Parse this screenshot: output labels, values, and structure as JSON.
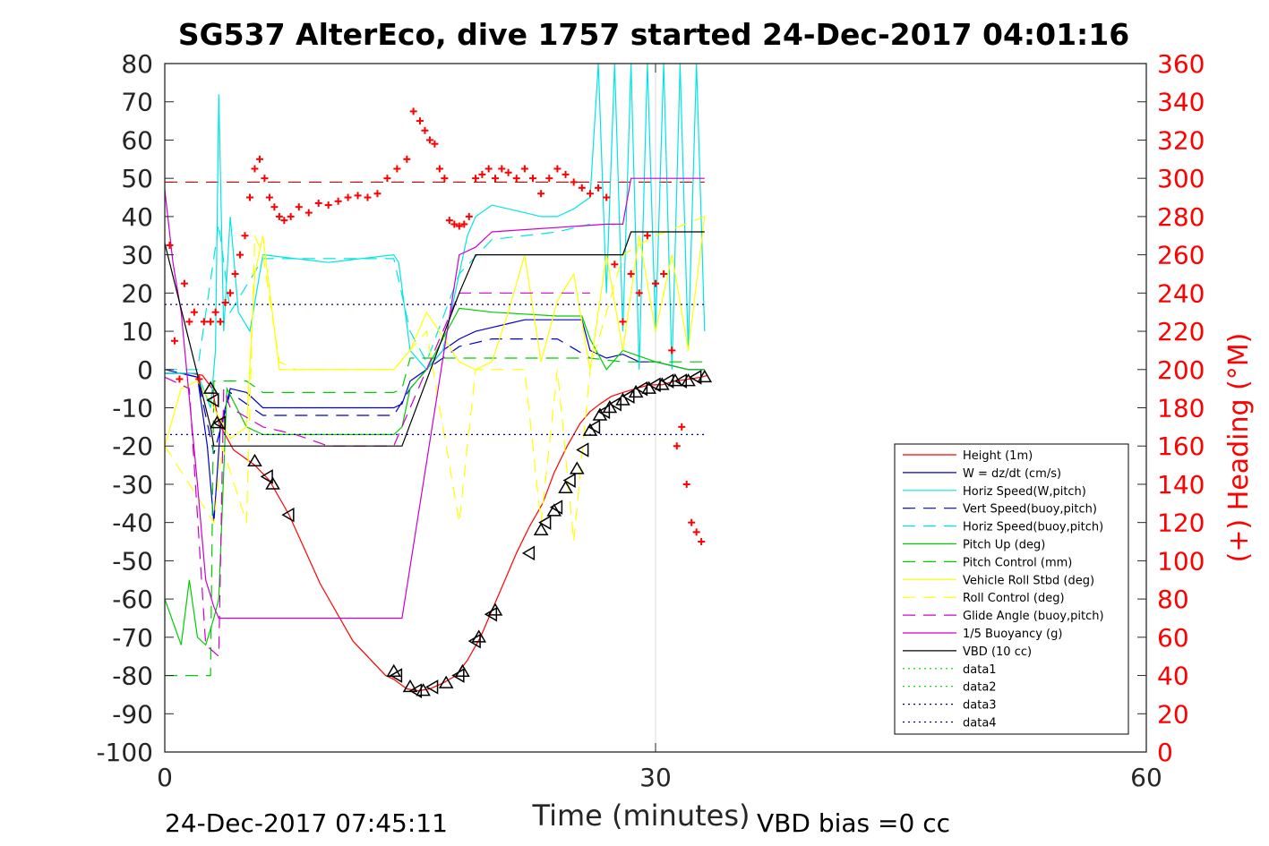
{
  "chart_data": {
    "type": "line",
    "title": "SG537 AlterEco, dive 1757 started 24-Dec-2017 04:01:16",
    "xlabel": "Time (minutes)",
    "ylabel": "",
    "y2label": "(+) Heading (°M)",
    "xlim": [
      0,
      60
    ],
    "ylim": [
      -100,
      80
    ],
    "y2lim": [
      0,
      360
    ],
    "xticks": [
      "0",
      "30",
      "60"
    ],
    "yticks": [
      "80",
      "70",
      "60",
      "50",
      "40",
      "30",
      "20",
      "10",
      "0",
      "-10",
      "-20",
      "-30",
      "-40",
      "-50",
      "-60",
      "-70",
      "-80",
      "-90",
      "-100"
    ],
    "y2ticks": [
      "360",
      "340",
      "320",
      "300",
      "280",
      "260",
      "240",
      "220",
      "200",
      "180",
      "160",
      "140",
      "120",
      "100",
      "80",
      "60",
      "40",
      "20",
      "0"
    ],
    "grid": "x only",
    "legend_position": "bottom-right",
    "footer_left": "24-Dec-2017 07:45:11",
    "footer_right": "VBD bias =0 cc",
    "series": [
      {
        "name": "Height (1m)",
        "color": "#ff0000",
        "style": "solid",
        "x": [
          0,
          0.8,
          1.6,
          2.3,
          2.9,
          3.3,
          4.2,
          5.5,
          6.4,
          7.6,
          9.5,
          11.5,
          13.5,
          14.0,
          14.8,
          15.5,
          16.2,
          17.0,
          17.8,
          18.5,
          19.3,
          20.0,
          20.7,
          21.5,
          22.3,
          23.1,
          23.8,
          24.6,
          25.4,
          26.0,
          26.6,
          27.3,
          28.0,
          28.8,
          29.6,
          30.4,
          31.2,
          32.0,
          32.8,
          33.2
        ],
        "y": [
          -1,
          -1,
          -1,
          -1.5,
          -5,
          -14,
          -21,
          -25,
          -29,
          -38,
          -56,
          -71,
          -80,
          -81,
          -83.5,
          -84,
          -83.5,
          -82,
          -80,
          -76,
          -70,
          -63,
          -56,
          -48,
          -41,
          -35,
          -27,
          -20,
          -14,
          -11,
          -9,
          -7,
          -6,
          -5,
          -4,
          -4,
          -3,
          -2.5,
          -2,
          -1.5
        ]
      },
      {
        "name": "W = dz/dt (cm/s)",
        "color": "#0000cc",
        "style": "solid",
        "x": [
          0,
          1,
          2,
          2.6,
          3.0,
          3.4,
          4,
          5,
          6,
          8,
          10,
          12,
          14,
          14.5,
          15,
          16,
          17,
          18,
          19,
          20,
          21,
          22,
          23,
          24,
          25,
          25.5,
          26,
          27,
          28,
          29,
          30,
          31,
          32,
          33
        ],
        "y": [
          -1,
          -1,
          -2,
          -20,
          -40,
          -15,
          -5,
          -6,
          -10,
          -10,
          -10,
          -10,
          -10,
          -9,
          -3,
          0,
          5,
          8,
          10,
          11,
          12,
          13,
          13,
          13,
          13,
          13,
          5,
          3,
          4,
          2,
          2,
          1,
          0,
          0
        ]
      },
      {
        "name": "Horiz Speed(W,pitch)",
        "color": "#00e5e5",
        "style": "solid",
        "x": [
          0,
          1,
          2,
          2.8,
          3.1,
          3.3,
          3.6,
          4.0,
          4.5,
          5.2,
          6,
          8,
          10,
          12,
          14,
          14.3,
          15,
          16,
          17,
          18,
          18.5,
          19,
          20,
          21,
          22,
          23,
          24,
          25,
          26,
          26.5,
          27,
          27.5,
          28,
          28.5,
          29,
          29.5,
          30,
          30.5,
          31,
          31.5,
          32,
          32.5,
          33
        ],
        "y": [
          -1,
          -1,
          -1,
          -10,
          5,
          72,
          10,
          40,
          15,
          10,
          30,
          29,
          28,
          29,
          30,
          28,
          5,
          0,
          5,
          25,
          35,
          40,
          43,
          42,
          41,
          40,
          40,
          42,
          45,
          80,
          20,
          80,
          10,
          80,
          0,
          80,
          10,
          80,
          0,
          80,
          5,
          80,
          10
        ]
      },
      {
        "name": "Vert Speed(buoy,pitch)",
        "color": "#0000cc",
        "style": "dashed",
        "x": [
          0,
          2,
          3,
          4,
          6,
          10,
          14,
          15,
          16,
          18,
          20,
          24,
          26
        ],
        "y": [
          0,
          -2,
          -22,
          -6,
          -12,
          -12,
          -12,
          -5,
          0,
          6,
          8,
          8,
          3
        ]
      },
      {
        "name": "Horiz Speed(buoy,pitch)",
        "color": "#00e5e5",
        "style": "dashed",
        "x": [
          0,
          2,
          3.3,
          4,
          6,
          10,
          14,
          15,
          16,
          18,
          20,
          24,
          26
        ],
        "y": [
          0,
          0,
          38,
          15,
          29,
          29,
          29,
          10,
          2,
          25,
          34,
          36,
          38
        ]
      },
      {
        "name": "Pitch Up (deg)",
        "color": "#00cc00",
        "style": "solid",
        "x": [
          0,
          1,
          1.5,
          2,
          2.5,
          3,
          3.3,
          3.8,
          5,
          6,
          8,
          10,
          12,
          14,
          14.5,
          15,
          16,
          17,
          18,
          20,
          24,
          25.5,
          26,
          27,
          28,
          30,
          32,
          33
        ],
        "y": [
          -60,
          -72,
          -55,
          -70,
          -72,
          -65,
          -60,
          -5,
          -15,
          -17,
          -17,
          -17,
          -17,
          -17,
          -15,
          -5,
          0,
          8,
          16,
          15,
          14,
          14,
          8,
          0,
          5,
          2,
          0,
          0
        ]
      },
      {
        "name": "Pitch Control (mm)",
        "color": "#00cc00",
        "style": "dashed",
        "x": [
          0,
          1.5,
          2.8,
          3,
          3.3,
          5,
          6,
          14,
          14.5,
          15,
          17,
          18,
          20,
          24,
          25.5,
          26,
          28,
          33
        ],
        "y": [
          -80,
          -80,
          -80,
          -3,
          -3,
          -3,
          -6,
          -6,
          -5,
          3,
          3,
          3,
          3,
          3,
          3,
          3,
          2,
          2
        ]
      },
      {
        "name": "Vehicle Roll Stbd (deg)",
        "color": "#ffff00",
        "style": "solid",
        "x": [
          0,
          1,
          2,
          3,
          4,
          5,
          5.5,
          6,
          7,
          8,
          10,
          12,
          14,
          15,
          16,
          18,
          19,
          20,
          21,
          22,
          23,
          24,
          25,
          26,
          27,
          28,
          29,
          30,
          31,
          32,
          33
        ],
        "y": [
          -20,
          -5,
          -3,
          -10,
          -18,
          -15,
          25,
          35,
          0,
          0,
          0,
          0,
          0,
          5,
          15,
          2,
          0,
          2,
          15,
          30,
          2,
          18,
          25,
          0,
          30,
          5,
          35,
          10,
          30,
          5,
          40
        ]
      },
      {
        "name": "Roll Control (deg)",
        "color": "#ffff00",
        "style": "dashed",
        "x": [
          0,
          3,
          3.5,
          5,
          5.5,
          6,
          7,
          8,
          14,
          16,
          18,
          19,
          22,
          23,
          24,
          25,
          26,
          28,
          30,
          33
        ],
        "y": [
          -20,
          -40,
          -20,
          -40,
          35,
          30,
          2,
          0,
          0,
          10,
          -40,
          0,
          0,
          -40,
          0,
          -45,
          0,
          30,
          35,
          40
        ]
      },
      {
        "name": "Glide Angle (buoy,pitch)",
        "color": "#cc00cc",
        "style": "dashed",
        "x": [
          0,
          1.5,
          2.5,
          3.3,
          3.6,
          4,
          6,
          8,
          10,
          12,
          14,
          15,
          16,
          17,
          18,
          20,
          24,
          26
        ],
        "y": [
          -2,
          -5,
          -72,
          -75,
          -5,
          -10,
          -15,
          -17,
          -20,
          -20,
          -20,
          -10,
          0,
          10,
          20,
          20,
          20,
          20
        ]
      },
      {
        "name": "1/5 Buoyancy (g)",
        "color": "#cc00cc",
        "style": "solid",
        "x": [
          0,
          0.5,
          1,
          2,
          2.5,
          3.0,
          3.3,
          3.6,
          10,
          14,
          14.5,
          18,
          19,
          20,
          27,
          28,
          28.5,
          33
        ],
        "y": [
          47,
          28,
          15,
          -30,
          -55,
          -62,
          -65,
          -65,
          -65,
          -65,
          -65,
          30,
          32,
          36,
          38,
          38,
          50,
          50
        ]
      },
      {
        "name": "VBD (10 cc)",
        "color": "#000000",
        "style": "solid",
        "x": [
          0,
          2.8,
          3.0,
          3.3,
          14.2,
          14.5,
          18,
          19,
          27.5,
          28,
          28.5,
          33
        ],
        "y": [
          33,
          -15,
          -20,
          -20,
          -20,
          -20,
          20,
          30,
          30,
          30,
          36,
          36
        ]
      },
      {
        "name": "data1",
        "color": "#00cc00",
        "style": "dotted",
        "x": [],
        "y": []
      },
      {
        "name": "data2",
        "color": "#00cc00",
        "style": "dotted",
        "x": [],
        "y": []
      },
      {
        "name": "data3",
        "color": "#000088",
        "style": "dotted",
        "x": [
          0,
          33
        ],
        "y": [
          17,
          17
        ]
      },
      {
        "name": "data4",
        "color": "#000088",
        "style": "dotted",
        "x": [
          0,
          33
        ],
        "y": [
          -17,
          -17
        ]
      }
    ],
    "reference_lines": [
      {
        "axis": "y2",
        "value": 298,
        "x": [
          0,
          33
        ],
        "color": "#cc0000",
        "style": "dashed"
      }
    ],
    "heading": {
      "axis": "y2",
      "color": "#ff0000",
      "marker": "+",
      "x": [
        0.3,
        0.6,
        0.9,
        1.2,
        1.5,
        1.8,
        2.1,
        2.4,
        2.8,
        3.1,
        3.4,
        3.7,
        4.0,
        4.3,
        4.6,
        4.9,
        5.2,
        5.5,
        5.8,
        6.1,
        6.4,
        6.7,
        7.0,
        7.3,
        7.7,
        8.2,
        8.8,
        9.4,
        10.0,
        10.6,
        11.2,
        11.8,
        12.4,
        13.0,
        13.6,
        14.2,
        14.8,
        15.2,
        15.6,
        15.9,
        16.2,
        16.5,
        16.8,
        17.1,
        17.4,
        17.7,
        18.0,
        18.3,
        18.6,
        19.0,
        19.4,
        19.8,
        20.2,
        20.6,
        21.0,
        21.5,
        22.0,
        22.5,
        23.0,
        23.5,
        24.0,
        24.5,
        25.0,
        25.5,
        26.0,
        26.5,
        27.0,
        27.5,
        28.0,
        28.5,
        29.0,
        29.5,
        30.0,
        30.5,
        31.0,
        31.3,
        31.6,
        31.9,
        32.2,
        32.5,
        32.8
      ],
      "y": [
        265,
        215,
        195,
        245,
        225,
        230,
        195,
        225,
        225,
        230,
        225,
        235,
        240,
        250,
        260,
        270,
        290,
        305,
        310,
        300,
        290,
        285,
        280,
        278,
        280,
        285,
        282,
        287,
        286,
        288,
        290,
        291,
        290,
        292,
        300,
        305,
        310,
        335,
        330,
        325,
        320,
        318,
        305,
        300,
        278,
        276,
        275,
        276,
        280,
        300,
        302,
        305,
        300,
        305,
        303,
        300,
        305,
        300,
        292,
        300,
        305,
        302,
        298,
        295,
        292,
        295,
        290,
        255,
        225,
        250,
        240,
        270,
        245,
        250,
        210,
        160,
        170,
        140,
        120,
        115,
        110
      ]
    },
    "markers": {
      "color": "#000000",
      "marker": "triangle",
      "x": [
        2.8,
        3.0,
        3.2,
        3.4,
        5.5,
        6.3,
        6.6,
        7.6,
        14.0,
        14.2,
        15.0,
        15.4,
        15.8,
        16.4,
        17.2,
        18.0,
        18.2,
        19.0,
        19.2,
        20.0,
        20.2,
        22.3,
        23.0,
        23.3,
        23.8,
        24.0,
        24.5,
        24.8,
        25.2,
        25.6,
        26.0,
        26.3,
        26.6,
        26.9,
        27.2,
        27.6,
        28.0,
        28.4,
        28.8,
        29.2,
        29.6,
        30.0,
        30.4,
        30.8,
        31.2,
        31.6,
        32.0,
        32.5,
        33.0
      ],
      "y": [
        -5,
        -8,
        -14,
        -14,
        -24,
        -28,
        -30,
        -38,
        -79,
        -80,
        -83,
        -84,
        -84,
        -83,
        -82,
        -80,
        -79,
        -71,
        -70,
        -64,
        -63,
        -48,
        -42,
        -40,
        -37,
        -36,
        -31,
        -29,
        -26,
        -21,
        -16,
        -15,
        -12,
        -11,
        -10,
        -9,
        -8,
        -7,
        -6,
        -5,
        -5,
        -4,
        -4,
        -3,
        -3,
        -3,
        -3,
        -2,
        -2
      ]
    }
  }
}
